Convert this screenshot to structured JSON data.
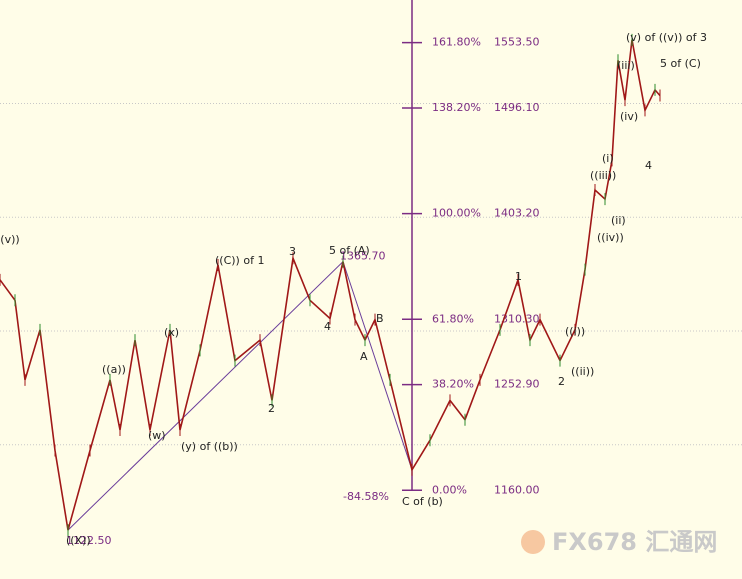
{
  "chart_data": {
    "type": "line",
    "color": "#a01818",
    "x": [
      0,
      15,
      25,
      40,
      55,
      68,
      90,
      110,
      120,
      135,
      150,
      170,
      180,
      200,
      218,
      235,
      260,
      272,
      293,
      310,
      330,
      343,
      355,
      365,
      375,
      390,
      412,
      430,
      450,
      465,
      480,
      500,
      518,
      530,
      540,
      560,
      575,
      585,
      595,
      605,
      612,
      618,
      625,
      632,
      645,
      655,
      660
    ],
    "values": [
      1345,
      1327,
      1257,
      1301,
      1195,
      1125,
      1195,
      1257,
      1213,
      1292,
      1213,
      1301,
      1213,
      1283,
      1358,
      1274,
      1292,
      1239,
      1364,
      1327,
      1311,
      1361,
      1310,
      1292,
      1310,
      1257,
      1178,
      1204,
      1239,
      1222,
      1257,
      1301,
      1345,
      1292,
      1310,
      1274,
      1301,
      1354,
      1424,
      1416,
      1450,
      1538,
      1503,
      1556,
      1494,
      1512,
      1507
    ],
    "xlim": [
      0,
      742
    ],
    "ylim": [
      1082,
      1591
    ],
    "grid_values": [
      1200,
      1300,
      1400,
      1500
    ],
    "fib_levels": [
      {
        "ratio": "161.80%",
        "price": {
          "value": 1553.5,
          "label": "1553.50"
        }
      },
      {
        "ratio": "138.20%",
        "price": {
          "value": 1496.1,
          "label": "1496.10"
        }
      },
      {
        "ratio": "100.00%",
        "price": {
          "value": 1403.2,
          "label": "1403.20"
        }
      },
      {
        "ratio": "61.80%",
        "price": {
          "value": 1310.3,
          "label": "1310.30"
        }
      },
      {
        "ratio": "38.20%",
        "price": {
          "value": 1252.9,
          "label": "1252.90"
        }
      },
      {
        "ratio": "0.00%",
        "price": {
          "value": 1160,
          "label": "1160.00"
        }
      }
    ],
    "price_labels": [
      {
        "value": 1365.7,
        "label": "1365.70"
      },
      {
        "value": 1122.5,
        "label": "1122.50"
      }
    ],
    "extension_label": "-84.58%",
    "annotations": [
      "((v))",
      "((a))",
      "(x)",
      "(w)",
      "(y) of ((b))",
      "((X))",
      "((C)) of 1",
      "3",
      "5 of (A)",
      "4",
      "2",
      "A",
      "B",
      "C of (b)",
      "1",
      "((i))",
      "((ii))",
      "2",
      "(ii)",
      "((iv))",
      "((iii))",
      "(i)",
      "(iv)",
      "(iii)",
      "(v) of ((v)) of 3",
      "5 of (C)",
      "4"
    ],
    "watermark": "FX678 汇通网"
  }
}
